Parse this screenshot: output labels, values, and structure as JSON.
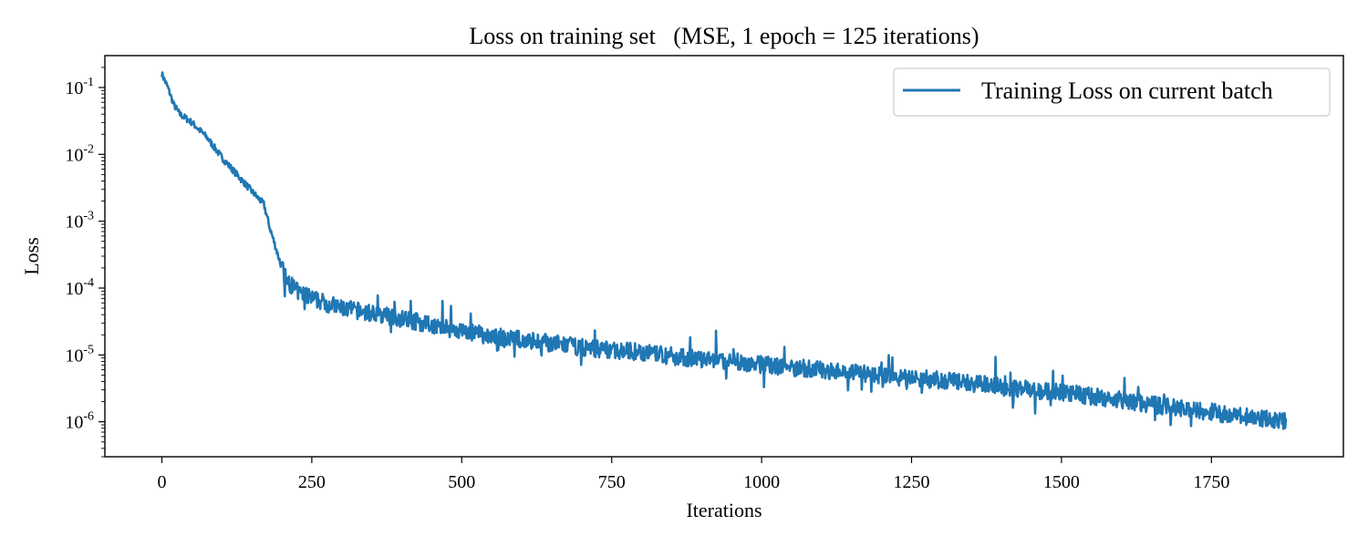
{
  "chart_data": {
    "type": "line",
    "title": "Loss on training set   (MSE, 1 epoch = 125 iterations)",
    "xlabel": "Iterations",
    "ylabel": "Loss",
    "xlim": [
      -95,
      1970
    ],
    "ylim": [
      3e-07,
      0.3
    ],
    "yscale": "log",
    "grid": false,
    "legend_position": "top-right",
    "x_ticks": [
      0,
      250,
      500,
      750,
      1000,
      1250,
      1500,
      1750
    ],
    "x_tick_labels": [
      "0",
      "250",
      "500",
      "750",
      "1000",
      "1250",
      "1500",
      "1750"
    ],
    "y_ticks": [
      {
        "value": 1e-06,
        "base": "10",
        "exp": "-6"
      },
      {
        "value": 1e-05,
        "base": "10",
        "exp": "-5"
      },
      {
        "value": 0.0001,
        "base": "10",
        "exp": "-4"
      },
      {
        "value": 0.001,
        "base": "10",
        "exp": "-3"
      },
      {
        "value": 0.01,
        "base": "10",
        "exp": "-2"
      },
      {
        "value": 0.1,
        "base": "10",
        "exp": "-1"
      }
    ],
    "series": [
      {
        "name": "Training Loss on current batch",
        "color": "#1f77b4",
        "x": [
          0,
          10,
          20,
          30,
          50,
          75,
          100,
          125,
          150,
          170,
          180,
          190,
          200,
          210,
          225,
          250,
          300,
          350,
          400,
          450,
          500,
          550,
          600,
          650,
          700,
          750,
          800,
          850,
          900,
          950,
          1000,
          1050,
          1100,
          1150,
          1200,
          1250,
          1300,
          1350,
          1400,
          1450,
          1500,
          1550,
          1600,
          1650,
          1700,
          1750,
          1800,
          1850,
          1874
        ],
        "y": [
          0.16,
          0.1,
          0.055,
          0.04,
          0.03,
          0.018,
          0.009,
          0.005,
          0.0028,
          0.0018,
          0.0008,
          0.0004,
          0.0002,
          0.00012,
          9e-05,
          7e-05,
          5e-05,
          4.2e-05,
          3.5e-05,
          2.8e-05,
          2.3e-05,
          1.9e-05,
          1.7e-05,
          1.5e-05,
          1.3e-05,
          1.2e-05,
          1.1e-05,
          9.5e-06,
          8.5e-06,
          8e-06,
          7.2e-06,
          6.5e-06,
          6e-06,
          5.5e-06,
          5e-06,
          4.5e-06,
          4.2e-06,
          3.8e-06,
          3.3e-06,
          3e-06,
          2.8e-06,
          2.4e-06,
          2.1e-06,
          1.8e-06,
          1.6e-06,
          1.4e-06,
          1.2e-06,
          1.1e-06,
          1e-06
        ]
      }
    ]
  }
}
